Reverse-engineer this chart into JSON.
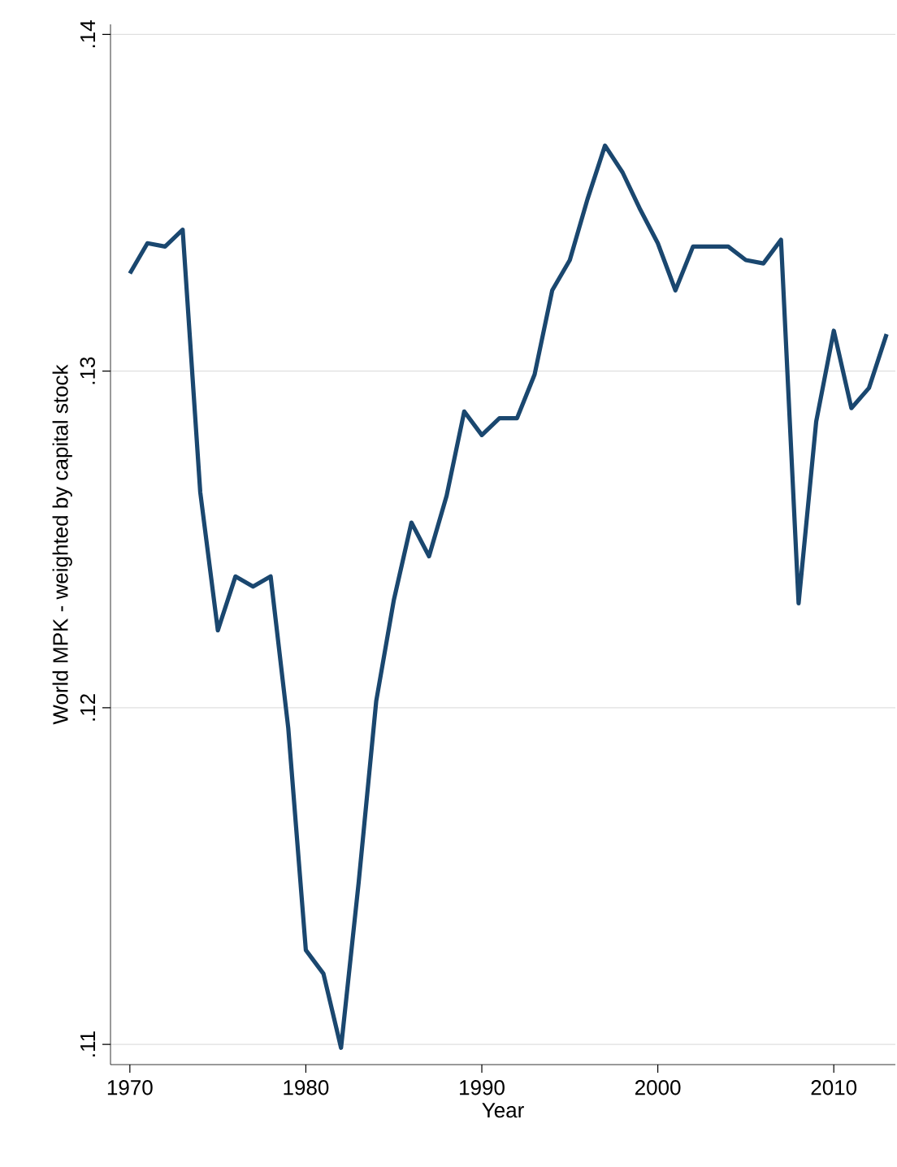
{
  "chart_data": {
    "type": "line",
    "xlabel": "Year",
    "ylabel": "World MPK - weighted by capital stock",
    "x": [
      1970,
      1971,
      1972,
      1973,
      1974,
      1975,
      1976,
      1977,
      1978,
      1979,
      1980,
      1981,
      1982,
      1983,
      1984,
      1985,
      1986,
      1987,
      1988,
      1989,
      1990,
      1991,
      1992,
      1993,
      1994,
      1995,
      1996,
      1997,
      1998,
      1999,
      2000,
      2001,
      2002,
      2003,
      2004,
      2005,
      2006,
      2007,
      2008,
      2009,
      2010,
      2011,
      2012,
      2013
    ],
    "series": [
      {
        "color": "#1a476f",
        "values": [
          0.1329,
          0.1338,
          0.1337,
          0.1342,
          0.1264,
          0.1223,
          0.1239,
          0.1236,
          0.1239,
          0.1194,
          0.1128,
          0.1121,
          0.1099,
          0.1148,
          0.1202,
          0.1232,
          0.1255,
          0.1245,
          0.1263,
          0.1288,
          0.1281,
          0.1286,
          0.1286,
          0.1299,
          0.1324,
          0.1333,
          0.1351,
          0.1367,
          0.1359,
          0.1348,
          0.1338,
          0.1324,
          0.1337,
          0.1337,
          0.1337,
          0.1333,
          0.1332,
          0.1339,
          0.1231,
          0.1285,
          0.1312,
          0.1289,
          0.1295,
          0.1311
        ]
      }
    ],
    "xlim": [
      1968.9,
      2013.5
    ],
    "ylim": [
      0.1094,
      0.1403
    ],
    "xticks": [
      1970,
      1980,
      1990,
      2000,
      2010
    ],
    "yticks": [
      {
        "value": 0.11,
        "label": ".11"
      },
      {
        "value": 0.12,
        "label": ".12"
      },
      {
        "value": 0.13,
        "label": ".13"
      },
      {
        "value": 0.14,
        "label": ".14"
      }
    ],
    "grid": "y",
    "marker": "none",
    "line_style": "solid"
  }
}
